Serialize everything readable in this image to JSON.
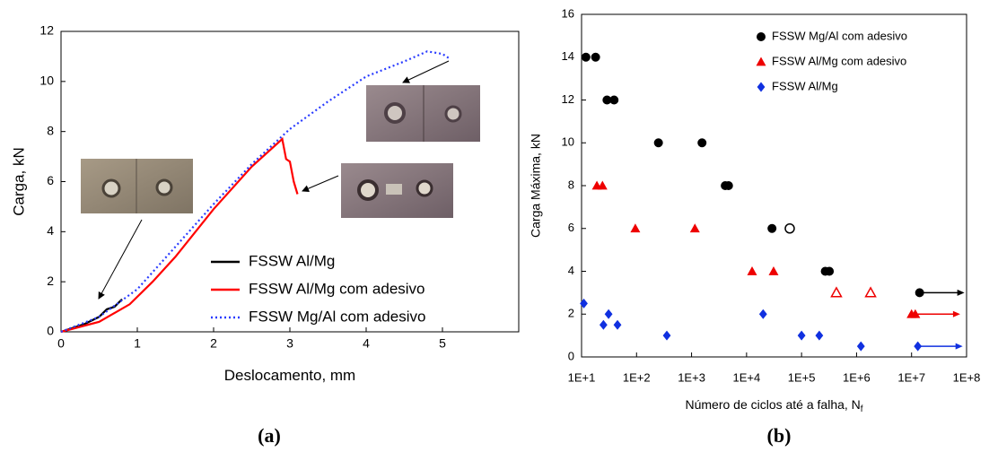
{
  "chart_data": [
    {
      "type": "line",
      "panel_label": "(a)",
      "xlabel": "Deslocamento, mm",
      "ylabel": "Carga, kN",
      "xlim": [
        0,
        6
      ],
      "xticks": [
        0,
        1,
        2,
        3,
        4,
        5
      ],
      "ylim": [
        0,
        12
      ],
      "yticks": [
        0,
        2,
        4,
        6,
        8,
        10,
        12
      ],
      "legend": "lower right",
      "series": [
        {
          "name": "FSSW Al/Mg",
          "color": "#000000",
          "dash": "solid",
          "x": [
            0,
            0.3,
            0.5,
            0.6,
            0.7,
            0.8
          ],
          "values": [
            0,
            0.3,
            0.6,
            0.9,
            1.0,
            1.3
          ]
        },
        {
          "name": "FSSW Al/Mg com adesivo",
          "color": "#ff0000",
          "dash": "solid",
          "x": [
            0,
            0.5,
            0.9,
            1.2,
            1.5,
            2,
            2.5,
            2.9,
            2.95,
            3.0,
            3.05,
            3.1
          ],
          "values": [
            0,
            0.4,
            1.1,
            2.0,
            3.0,
            4.9,
            6.6,
            7.7,
            6.9,
            6.8,
            6.0,
            5.5
          ]
        },
        {
          "name": "FSSW Mg/Al com adesivo",
          "color": "#2a3cff",
          "dash": "dotted",
          "x": [
            0,
            0.5,
            1,
            1.5,
            2,
            2.5,
            3,
            3.5,
            4,
            4.5,
            4.8,
            5,
            5.1
          ],
          "values": [
            0,
            0.6,
            1.7,
            3.4,
            5.1,
            6.7,
            8.1,
            9.2,
            10.2,
            10.8,
            11.2,
            11.1,
            10.9
          ]
        }
      ]
    },
    {
      "type": "scatter",
      "panel_label": "(b)",
      "xlabel": "Número de ciclos até a falha, N",
      "xlabel_subscript": "f",
      "ylabel": "Carga Máxima, kN",
      "xscale": "log",
      "xlim": [
        10,
        100000000
      ],
      "xticks": [
        {
          "value": 10,
          "label": "1E+1"
        },
        {
          "value": 100,
          "label": "1E+2"
        },
        {
          "value": 1000,
          "label": "1E+3"
        },
        {
          "value": 10000,
          "label": "1E+4"
        },
        {
          "value": 100000,
          "label": "1E+5"
        },
        {
          "value": 1000000,
          "label": "1E+6"
        },
        {
          "value": 10000000,
          "label": "1E+7"
        },
        {
          "value": 100000000,
          "label": "1E+8"
        }
      ],
      "ylim": [
        0,
        16
      ],
      "yticks": [
        0,
        2,
        4,
        6,
        8,
        10,
        12,
        14,
        16
      ],
      "legend": "upper right",
      "series": [
        {
          "name": "FSSW Mg/Al com adesivo",
          "color": "#000000",
          "marker": "circle",
          "x": [
            12,
            18,
            29,
            39,
            250,
            1550,
            4100,
            4700,
            29000,
            61000,
            270000,
            320000,
            14000000
          ],
          "values": [
            14,
            14,
            12,
            12,
            10,
            10,
            8,
            8,
            6,
            6,
            4,
            4,
            3
          ],
          "open": [
            false,
            false,
            false,
            false,
            false,
            false,
            false,
            false,
            false,
            true,
            false,
            false,
            false
          ],
          "runout": [
            false,
            false,
            false,
            false,
            false,
            false,
            false,
            false,
            false,
            false,
            false,
            false,
            true
          ]
        },
        {
          "name": "FSSW Al/Mg com adesivo",
          "color": "#ee0000",
          "marker": "triangle",
          "x": [
            19,
            24,
            95,
            1150,
            12600,
            31000,
            430000,
            1800000,
            10000000,
            11700000
          ],
          "values": [
            8,
            8,
            6,
            6,
            4,
            4,
            3,
            3,
            2,
            2
          ],
          "open": [
            false,
            false,
            false,
            false,
            false,
            false,
            true,
            true,
            false,
            false
          ],
          "runout": [
            false,
            false,
            false,
            false,
            false,
            false,
            false,
            false,
            false,
            true
          ]
        },
        {
          "name": "FSSW Al/Mg",
          "color": "#1030e0",
          "marker": "diamond",
          "x": [
            11,
            25,
            31,
            45,
            355,
            20000,
            100000,
            210000,
            1200000,
            13000000
          ],
          "values": [
            2.5,
            1.5,
            2,
            1.5,
            1,
            2,
            1,
            1,
            0.5,
            0.5
          ],
          "open": [
            false,
            false,
            false,
            false,
            false,
            false,
            false,
            false,
            false,
            false
          ],
          "runout": [
            false,
            false,
            false,
            false,
            false,
            false,
            false,
            false,
            false,
            true
          ]
        }
      ]
    }
  ]
}
